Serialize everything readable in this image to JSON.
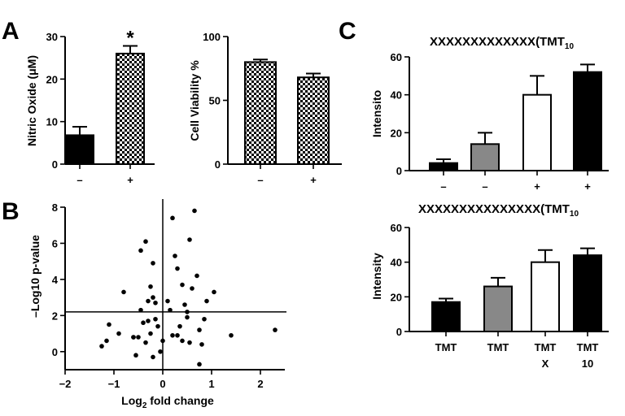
{
  "panels": {
    "a": "A",
    "b": "B",
    "c": "C"
  },
  "chart_data": [
    {
      "type": "bar",
      "panel": "A",
      "ylabel": "Nitric Oxide (μM)",
      "ylim": [
        0,
        30
      ],
      "yticks": [
        0,
        10,
        20,
        30
      ],
      "categories": [
        "–",
        "+"
      ],
      "values": [
        6.8,
        26.0
      ],
      "errors": [
        2.0,
        1.8
      ],
      "fills": [
        "black",
        "checker"
      ],
      "annotations": [
        {
          "category_index": 1,
          "text": "*"
        }
      ]
    },
    {
      "type": "bar",
      "panel": "A",
      "ylabel": "Cell Viability %",
      "ylim": [
        0,
        100
      ],
      "yticks": [
        0,
        50,
        100
      ],
      "categories": [
        "–",
        "+"
      ],
      "values": [
        80,
        68
      ],
      "errors": [
        2,
        3
      ],
      "fills": [
        "checker",
        "checker"
      ]
    },
    {
      "type": "scatter",
      "panel": "B",
      "xlabel_main": "Log",
      "xlabel_sub": "2",
      "xlabel_rest": " fold change",
      "ylabel": "–Log10 p-value",
      "xlim": [
        -2,
        2.5
      ],
      "ylim": [
        -1,
        8
      ],
      "xticks": [
        -2,
        -1,
        0,
        1,
        2
      ],
      "xtick_labels": [
        "−2",
        "−1",
        "0",
        "1",
        "2"
      ],
      "yticks": [
        0,
        2,
        4,
        6,
        8
      ],
      "threshold_y": 2.2,
      "vline_x": 0,
      "points": [
        [
          -1.1,
          1.5
        ],
        [
          -1.25,
          0.3
        ],
        [
          -1.15,
          0.6
        ],
        [
          -0.6,
          0.8
        ],
        [
          -0.5,
          0.8
        ],
        [
          -0.45,
          5.6
        ],
        [
          -0.35,
          6.1
        ],
        [
          -0.2,
          4.9
        ],
        [
          -0.25,
          3.6
        ],
        [
          -0.3,
          2.8
        ],
        [
          -0.15,
          2.7
        ],
        [
          -0.1,
          1.4
        ],
        [
          -0.05,
          0.0
        ],
        [
          0.0,
          0.6
        ],
        [
          -0.4,
          1.6
        ],
        [
          -0.6,
          0.8
        ],
        [
          -0.8,
          3.3
        ],
        [
          -0.9,
          1.0
        ],
        [
          -0.55,
          -0.2
        ],
        [
          -0.35,
          0.5
        ],
        [
          -0.2,
          -0.3
        ],
        [
          -0.25,
          1.0
        ],
        [
          -0.3,
          1.7
        ],
        [
          -0.15,
          1.8
        ],
        [
          -0.45,
          2.3
        ],
        [
          -0.2,
          3.0
        ],
        [
          0.1,
          2.8
        ],
        [
          0.15,
          2.3
        ],
        [
          0.2,
          7.4
        ],
        [
          0.25,
          5.3
        ],
        [
          0.3,
          4.6
        ],
        [
          0.4,
          3.7
        ],
        [
          0.45,
          2.6
        ],
        [
          0.5,
          2.2
        ],
        [
          0.5,
          1.9
        ],
        [
          0.55,
          6.2
        ],
        [
          0.6,
          3.5
        ],
        [
          0.65,
          7.8
        ],
        [
          0.7,
          4.2
        ],
        [
          0.75,
          1.2
        ],
        [
          0.8,
          0.4
        ],
        [
          0.85,
          1.8
        ],
        [
          0.9,
          2.8
        ],
        [
          1.05,
          3.3
        ],
        [
          0.4,
          0.6
        ],
        [
          0.3,
          0.9
        ],
        [
          0.35,
          1.4
        ],
        [
          0.2,
          0.9
        ],
        [
          0.55,
          0.5
        ],
        [
          0.75,
          -0.7
        ],
        [
          1.4,
          0.9
        ],
        [
          2.3,
          1.2
        ]
      ]
    },
    {
      "type": "bar",
      "panel": "C",
      "header": "XXXXXXXXXXXXX(TMT",
      "header_sub": "10",
      "ylabel": "Intensito",
      "ylim": [
        0,
        60
      ],
      "yticks": [
        0,
        20,
        40,
        60
      ],
      "categories": [
        "–",
        "–",
        "+",
        "+"
      ],
      "values": [
        4,
        14,
        40,
        52
      ],
      "errors": [
        2,
        6,
        10,
        4
      ],
      "fills": [
        "#000000",
        "#888888",
        "#ffffff",
        "#000000"
      ]
    },
    {
      "type": "bar",
      "panel": "C",
      "header": "XXXXXXXXXXXXXXX(TMT",
      "header_sub": "10",
      "ylabel": "Intensity",
      "ylim": [
        0,
        60
      ],
      "yticks": [
        0,
        20,
        40,
        60
      ],
      "categories": [
        "TMT",
        "TMT",
        "TMT X",
        "TMT 10"
      ],
      "category_lines": [
        [
          "TMT"
        ],
        [
          "TMT"
        ],
        [
          "TMT",
          "X"
        ],
        [
          "TMT",
          "10"
        ]
      ],
      "values": [
        17,
        26,
        40,
        44
      ],
      "errors": [
        2,
        5,
        7,
        4
      ],
      "fills": [
        "#000000",
        "#888888",
        "#ffffff",
        "#000000"
      ]
    }
  ]
}
